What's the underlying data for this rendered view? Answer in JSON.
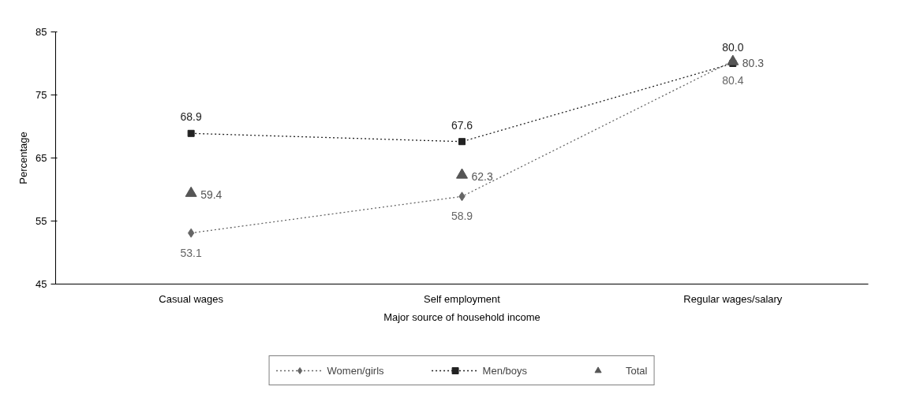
{
  "chart_data": {
    "type": "line",
    "xlabel": "Major source of household income",
    "ylabel": "Percentage",
    "categories": [
      "Casual wages",
      "Self employment",
      "Regular wages/salary"
    ],
    "ylim": [
      45,
      85
    ],
    "yticks": [
      45,
      55,
      65,
      75,
      85
    ],
    "grid": false,
    "legend": "bottom",
    "line_style": "dotted",
    "series": [
      {
        "name": "Women/girls",
        "marker": "diamond",
        "color": "#666666",
        "values": [
          53.1,
          58.9,
          80.4
        ],
        "value_labels": [
          "53.1",
          "58.9",
          "80.4"
        ]
      },
      {
        "name": "Men/boys",
        "marker": "square",
        "color": "#222222",
        "values": [
          68.9,
          67.6,
          80.0
        ],
        "value_labels": [
          "68.9",
          "67.6",
          "80.0"
        ]
      },
      {
        "name": "Total",
        "type": "scatter",
        "marker": "triangle",
        "color": "#555555",
        "values": [
          59.4,
          62.3,
          80.3
        ],
        "value_labels": [
          "59.4",
          "62.3",
          "80.3"
        ]
      }
    ]
  }
}
